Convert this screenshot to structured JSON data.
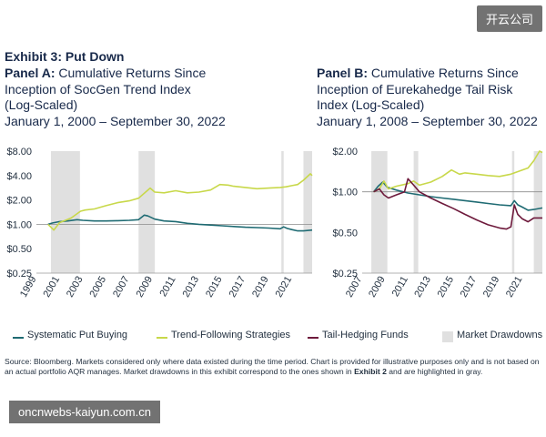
{
  "watermark_top": "开云公司",
  "watermark_bottom": "oncnwebs-kaiyun.com.cn",
  "exhibit_title": "Exhibit 3: Put Down",
  "colors": {
    "put": "#1f6b73",
    "trend": "#c8d84a",
    "tail": "#6e1a3c",
    "drawdown": "#e0e0e0"
  },
  "legend": [
    {
      "label": "Systematic Put Buying",
      "color": "#1f6b73",
      "kind": "line"
    },
    {
      "label": "Trend-Following Strategies",
      "color": "#c8d84a",
      "kind": "line"
    },
    {
      "label": "Tail-Hedging Funds",
      "color": "#6e1a3c",
      "kind": "line"
    },
    {
      "label": "Market Drawdowns",
      "color": "#e0e0e0",
      "kind": "box"
    }
  ],
  "source_text": "Source: Bloomberg. Markets considered only where data existed during the time period. Chart is provided for illustrative purposes only and is not based on an actual portfolio AQR manages. Market drawdowns in this exhibit correspond to the ones shown in ",
  "source_bold": "Exhibit 2",
  "source_tail": " and are highlighted in gray.",
  "chart_data": [
    {
      "type": "line",
      "panel_label": "Panel A:",
      "title": "Cumulative Returns Since Inception of SocGen Trend Index (Log-Scaled)",
      "title_lines": [
        "Cumulative Returns Since",
        "Inception of SocGen Trend Index",
        "(Log-Scaled)"
      ],
      "subtitle": "January 1, 2000 – September 30, 2022",
      "y_scale": "log",
      "ylim": [
        0.25,
        8
      ],
      "xlim": [
        1999,
        2022.75
      ],
      "y_ticks": [
        {
          "value": 8,
          "label": "$8.00"
        },
        {
          "value": 4,
          "label": "$4.00"
        },
        {
          "value": 2,
          "label": "$2.00"
        },
        {
          "value": 1,
          "label": "$1.00"
        },
        {
          "value": 0.5,
          "label": "$0.50"
        },
        {
          "value": 0.25,
          "label": "$0.25"
        }
      ],
      "x_ticks": [
        "1999",
        "2001",
        "2003",
        "2005",
        "2007",
        "2009",
        "2011",
        "2013",
        "2015",
        "2017",
        "2019",
        "2021"
      ],
      "drawdowns": [
        [
          2000.25,
          2002.75
        ],
        [
          2007.8,
          2009.2
        ],
        [
          2020.1,
          2020.3
        ],
        [
          2022.0,
          2022.75
        ]
      ],
      "series": [
        {
          "name": "Systematic Put Buying",
          "key": "put",
          "x": [
            2000.0,
            2000.4,
            2001,
            2001.7,
            2002.5,
            2003,
            2004,
            2005,
            2006,
            2007,
            2007.8,
            2008.3,
            2008.6,
            2009.2,
            2010,
            2011,
            2012,
            2013,
            2014,
            2015,
            2016,
            2017,
            2018,
            2019,
            2020,
            2020.3,
            2020.6,
            2021,
            2021.5,
            2022,
            2022.75
          ],
          "y": [
            1.0,
            1.04,
            1.08,
            1.1,
            1.14,
            1.12,
            1.1,
            1.1,
            1.11,
            1.12,
            1.14,
            1.3,
            1.27,
            1.16,
            1.1,
            1.08,
            1.03,
            1.0,
            0.98,
            0.96,
            0.94,
            0.92,
            0.91,
            0.9,
            0.88,
            0.93,
            0.89,
            0.86,
            0.83,
            0.83,
            0.85
          ]
        },
        {
          "name": "Trend-Following Strategies",
          "key": "trend",
          "x": [
            2000.0,
            2000.5,
            2001,
            2001.5,
            2002,
            2002.8,
            2003.2,
            2004,
            2005,
            2006,
            2007,
            2007.8,
            2008.8,
            2009.2,
            2010,
            2011,
            2012,
            2013,
            2014,
            2014.8,
            2015.5,
            2016,
            2017,
            2018,
            2019,
            2020,
            2020.5,
            2021,
            2021.5,
            2022,
            2022.6,
            2022.75
          ],
          "y": [
            1.0,
            0.85,
            1.05,
            1.12,
            1.2,
            1.45,
            1.5,
            1.55,
            1.7,
            1.85,
            1.95,
            2.1,
            2.8,
            2.5,
            2.45,
            2.6,
            2.45,
            2.5,
            2.65,
            3.1,
            3.05,
            2.95,
            2.85,
            2.75,
            2.8,
            2.85,
            2.9,
            3.0,
            3.1,
            3.5,
            4.2,
            4.0
          ]
        }
      ]
    },
    {
      "type": "line",
      "panel_label": "Panel B:",
      "title": "Cumulative Returns Since Inception of Eurekahedge Tail Risk Index (Log-Scaled)",
      "title_lines": [
        "Cumulative Returns Since",
        "Inception of Eurekahedge Tail Risk",
        "Index (Log-Scaled)"
      ],
      "subtitle": "January 1, 2008 – September 30, 2022",
      "y_scale": "log",
      "ylim": [
        0.25,
        2
      ],
      "xlim": [
        2007,
        2022.75
      ],
      "y_ticks": [
        {
          "value": 2,
          "label": "$2.00"
        },
        {
          "value": 1,
          "label": "$1.00"
        },
        {
          "value": 0.5,
          "label": "$0.50"
        },
        {
          "value": 0.25,
          "label": "$0.25"
        }
      ],
      "x_ticks": [
        "2007",
        "2009",
        "2011",
        "2013",
        "2015",
        "2017",
        "2019",
        "2021"
      ],
      "drawdowns": [
        [
          2007.8,
          2009.2
        ],
        [
          2011.5,
          2011.9
        ],
        [
          2020.1,
          2020.3
        ],
        [
          2022.0,
          2022.75
        ]
      ],
      "series": [
        {
          "name": "Systematic Put Buying",
          "key": "put",
          "x": [
            2008.0,
            2008.4,
            2008.8,
            2009.2,
            2010,
            2011,
            2012,
            2013,
            2014,
            2015,
            2016,
            2017,
            2018,
            2019,
            2020,
            2020.3,
            2020.6,
            2021,
            2021.5,
            2022,
            2022.75
          ],
          "y": [
            1.0,
            1.1,
            1.18,
            1.08,
            1.03,
            0.98,
            0.95,
            0.92,
            0.9,
            0.88,
            0.86,
            0.84,
            0.82,
            0.8,
            0.79,
            0.86,
            0.8,
            0.77,
            0.73,
            0.74,
            0.76
          ]
        },
        {
          "name": "Trend-Following Strategies",
          "key": "trend",
          "x": [
            2008.0,
            2008.5,
            2008.9,
            2009.3,
            2010,
            2011,
            2011.5,
            2012,
            2013,
            2014,
            2014.8,
            2015.5,
            2016,
            2017,
            2018,
            2019,
            2020,
            2020.5,
            2021,
            2021.5,
            2022,
            2022.5,
            2022.75
          ],
          "y": [
            1.0,
            1.05,
            1.2,
            1.05,
            1.1,
            1.15,
            1.2,
            1.12,
            1.18,
            1.3,
            1.45,
            1.35,
            1.38,
            1.35,
            1.32,
            1.3,
            1.35,
            1.4,
            1.45,
            1.5,
            1.7,
            2.0,
            1.95
          ]
        },
        {
          "name": "Tail-Hedging Funds",
          "key": "tail",
          "x": [
            2008.0,
            2008.5,
            2008.9,
            2009.3,
            2010,
            2010.7,
            2011,
            2011.5,
            2012,
            2013,
            2014,
            2015,
            2016,
            2017,
            2018,
            2019,
            2019.6,
            2020,
            2020.3,
            2020.6,
            2021,
            2021.5,
            2022,
            2022.75
          ],
          "y": [
            1.0,
            1.05,
            0.95,
            0.9,
            0.95,
            1.0,
            1.25,
            1.12,
            1.0,
            0.9,
            0.82,
            0.75,
            0.68,
            0.62,
            0.57,
            0.54,
            0.53,
            0.55,
            0.8,
            0.68,
            0.63,
            0.6,
            0.64,
            0.64
          ]
        }
      ]
    }
  ]
}
